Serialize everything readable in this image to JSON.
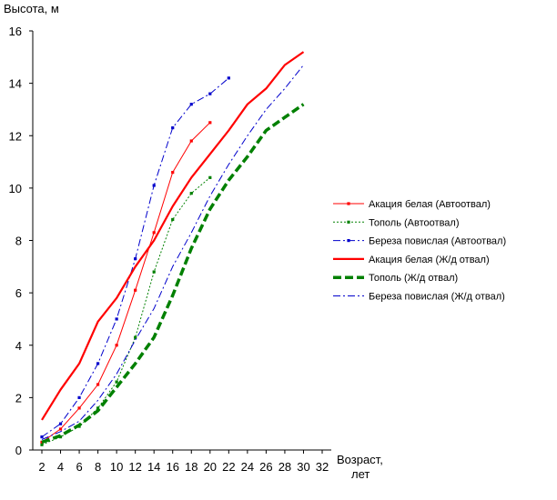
{
  "chart_data": {
    "type": "line",
    "ylabel": "Высота, м",
    "xlabel_line1": "Возраст,",
    "xlabel_line2": "лет",
    "xlim": [
      2,
      32
    ],
    "ylim": [
      0,
      16
    ],
    "x_ticks": [
      2,
      4,
      6,
      8,
      10,
      12,
      14,
      16,
      18,
      20,
      22,
      24,
      26,
      28,
      30,
      32
    ],
    "y_ticks": [
      0,
      2,
      4,
      6,
      8,
      10,
      12,
      14,
      16
    ],
    "grid": false,
    "legend_position": "right",
    "series": [
      {
        "name": "Акация белая (Автоотвал)",
        "color": "#ff0000",
        "style": "thin-solid-markers",
        "x": [
          2,
          4,
          6,
          8,
          10,
          12,
          14,
          16,
          18,
          20
        ],
        "y": [
          0.3,
          0.8,
          1.6,
          2.5,
          4.0,
          6.1,
          8.3,
          10.6,
          11.8,
          12.5
        ]
      },
      {
        "name": "Тополь (Автоотвал)",
        "color": "#008000",
        "style": "thin-dotted-markers",
        "x": [
          2,
          4,
          6,
          8,
          10,
          12,
          14,
          16,
          18,
          20
        ],
        "y": [
          0.2,
          0.5,
          0.9,
          1.6,
          2.6,
          4.3,
          6.8,
          8.8,
          9.8,
          10.4
        ]
      },
      {
        "name": "Береза повислая (Автоотвал)",
        "color": "#0000cc",
        "style": "dashdot-markers",
        "x": [
          2,
          4,
          6,
          8,
          10,
          12,
          14,
          16,
          18,
          20,
          22
        ],
        "y": [
          0.5,
          1.0,
          2.0,
          3.3,
          5.0,
          7.3,
          10.1,
          12.3,
          13.2,
          13.6,
          14.2
        ]
      },
      {
        "name": "Акация белая (Ж/д отвал)",
        "color": "#ff0000",
        "style": "thick-solid",
        "x": [
          2,
          4,
          6,
          8,
          10,
          12,
          14,
          16,
          18,
          20,
          22,
          24,
          26,
          28,
          30
        ],
        "y": [
          1.15,
          2.3,
          3.3,
          4.9,
          5.8,
          7.0,
          8.0,
          9.3,
          10.4,
          11.3,
          12.2,
          13.2,
          13.8,
          14.7,
          15.2
        ]
      },
      {
        "name": "Тополь (Ж/д отвал)",
        "color": "#008000",
        "style": "thick-dashed",
        "x": [
          2,
          4,
          6,
          8,
          10,
          12,
          14,
          16,
          18,
          20,
          22,
          24,
          26,
          28,
          30
        ],
        "y": [
          0.3,
          0.55,
          0.95,
          1.5,
          2.4,
          3.3,
          4.3,
          5.9,
          7.7,
          9.2,
          10.3,
          11.2,
          12.2,
          12.7,
          13.2
        ]
      },
      {
        "name": "Береза повислая (Ж/д отвал)",
        "color": "#0000cc",
        "style": "dashdot",
        "x": [
          2,
          4,
          6,
          8,
          10,
          12,
          14,
          16,
          18,
          20,
          22,
          24,
          26,
          28,
          30
        ],
        "y": [
          0.4,
          0.7,
          1.1,
          1.9,
          2.9,
          4.2,
          5.4,
          7.0,
          8.3,
          9.7,
          10.9,
          12.0,
          13.0,
          13.8,
          14.7
        ]
      }
    ]
  }
}
